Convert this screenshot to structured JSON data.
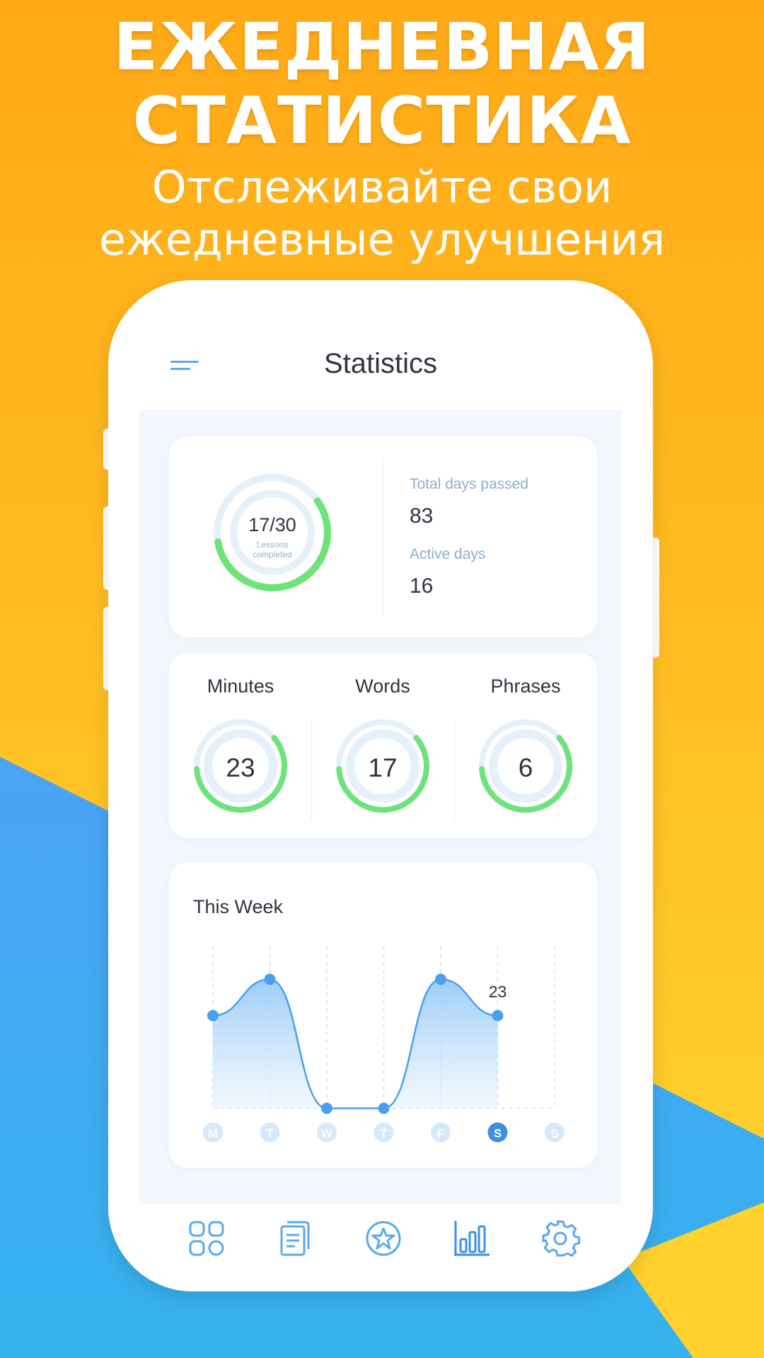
{
  "banner": {
    "headline_line1": "ЕЖЕДНЕВНАЯ",
    "headline_line2": "СТАТИСТИКА",
    "subtitle_line1": "Отслеживайте свои",
    "subtitle_line2": "ежедневные улучшения"
  },
  "colors": {
    "orange": "#ffa916",
    "yellow": "#ffd22e",
    "blue": "#3eaaf0",
    "accent_green": "#6ee37a",
    "ring_track": "#e6f0fb",
    "chart_blue": "#4a9ff0"
  },
  "app": {
    "title": "Statistics",
    "menu_icon": "menu-icon"
  },
  "summary": {
    "lessons_value": "17/30",
    "lessons_caption_line1": "Lessons",
    "lessons_caption_line2": "completed",
    "lessons_progress": 0.57,
    "total_days_label": "Total days passed",
    "total_days_value": "83",
    "active_days_label": "Active days",
    "active_days_value": "16"
  },
  "metrics": [
    {
      "label": "Minutes",
      "value": "23",
      "progress": 0.6
    },
    {
      "label": "Words",
      "value": "17",
      "progress": 0.6
    },
    {
      "label": "Phrases",
      "value": "6",
      "progress": 0.6
    }
  ],
  "week": {
    "title": "This Week",
    "selected_day_index": 5,
    "selected_value_label": "23"
  },
  "chart_data": {
    "type": "area",
    "title": "This Week",
    "categories": [
      "M",
      "T",
      "W",
      "T",
      "F",
      "S",
      "S"
    ],
    "values": [
      23,
      32,
      0,
      0,
      32,
      23,
      null
    ],
    "ylim": [
      0,
      40
    ],
    "grid": "vertical dashed",
    "data_labels": [
      {
        "index": 5,
        "text": "23"
      }
    ]
  },
  "nav": [
    {
      "icon": "dashboard-icon",
      "active": false
    },
    {
      "icon": "notes-icon",
      "active": false
    },
    {
      "icon": "star-badge-icon",
      "active": false
    },
    {
      "icon": "bar-chart-icon",
      "active": true
    },
    {
      "icon": "gear-icon",
      "active": false
    }
  ]
}
